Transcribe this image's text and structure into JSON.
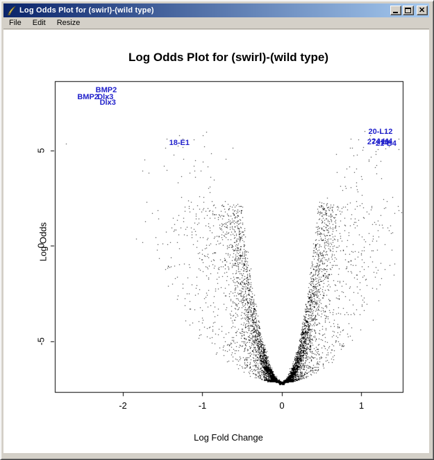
{
  "window": {
    "title": "Log Odds Plot for (swirl)-(wild type)",
    "icon": "quill-icon",
    "controls": {
      "minimize": "minimize",
      "maximize": "maximize",
      "close": "close"
    }
  },
  "menu": {
    "items": [
      {
        "label": "File"
      },
      {
        "label": "Edit"
      },
      {
        "label": "Resize"
      }
    ]
  },
  "chart_data": {
    "type": "scatter",
    "title": "Log Odds Plot for (swirl)-(wild type)",
    "xlabel": "Log Fold Change",
    "ylabel": "Log Odds",
    "xlim": [
      -2.856,
      1.52
    ],
    "ylim": [
      -7.67,
      8.62
    ],
    "xticks": [
      -2,
      -1,
      0,
      1
    ],
    "yticks": [
      -5,
      0,
      5
    ],
    "grid": false,
    "legend": null,
    "point_color": "#000000",
    "label_color": "#2222cc",
    "description": "Volcano-shaped microarray scatter (~8400 spots, 1px dots): dense parabolic funnel with vertex at (0, -7.05), arms rising and widening; sparse scattered points in upper wings; labelled outlier genes in blue.",
    "sim": {
      "seed": 1234567,
      "n_core": 6400,
      "n_tail": 260,
      "vertex": [
        0,
        -7.05
      ],
      "envelope_k": 45
    },
    "labeled_points": [
      {
        "text": "BMP2",
        "x": -2.21,
        "y": 8.15
      },
      {
        "text": "BMP2",
        "x": -2.44,
        "y": 7.8
      },
      {
        "text": "Dlx3",
        "x": -2.22,
        "y": 7.78
      },
      {
        "text": "Dlx3",
        "x": -2.19,
        "y": 7.48
      },
      {
        "text": "18-E1",
        "x": -1.29,
        "y": 5.38
      },
      {
        "text": "20-L12",
        "x": 1.24,
        "y": 5.95
      },
      {
        "text": "24-H4",
        "x": 1.26,
        "y": 5.45
      },
      {
        "text": "27-I16",
        "x": 1.21,
        "y": 5.42
      },
      {
        "text": "21-B4",
        "x": 1.31,
        "y": 5.36
      }
    ],
    "extra_points": [
      [
        -2.72,
        5.33
      ],
      [
        -1.36,
        4.75
      ],
      [
        -1.24,
        4.55
      ],
      [
        -1.45,
        3.95
      ],
      [
        1.18,
        4.95
      ],
      [
        1.3,
        5.1
      ],
      [
        1.35,
        5.28
      ],
      [
        1.42,
        5.5
      ],
      [
        1.12,
        4.65
      ],
      [
        1.47,
        5.62
      ],
      [
        -2.21,
        8.15
      ],
      [
        -2.44,
        7.8
      ],
      [
        -2.22,
        7.78
      ],
      [
        -2.19,
        7.48
      ],
      [
        -1.29,
        5.38
      ],
      [
        1.24,
        5.95
      ],
      [
        1.26,
        5.45
      ],
      [
        1.21,
        5.42
      ],
      [
        1.31,
        5.36
      ]
    ]
  }
}
